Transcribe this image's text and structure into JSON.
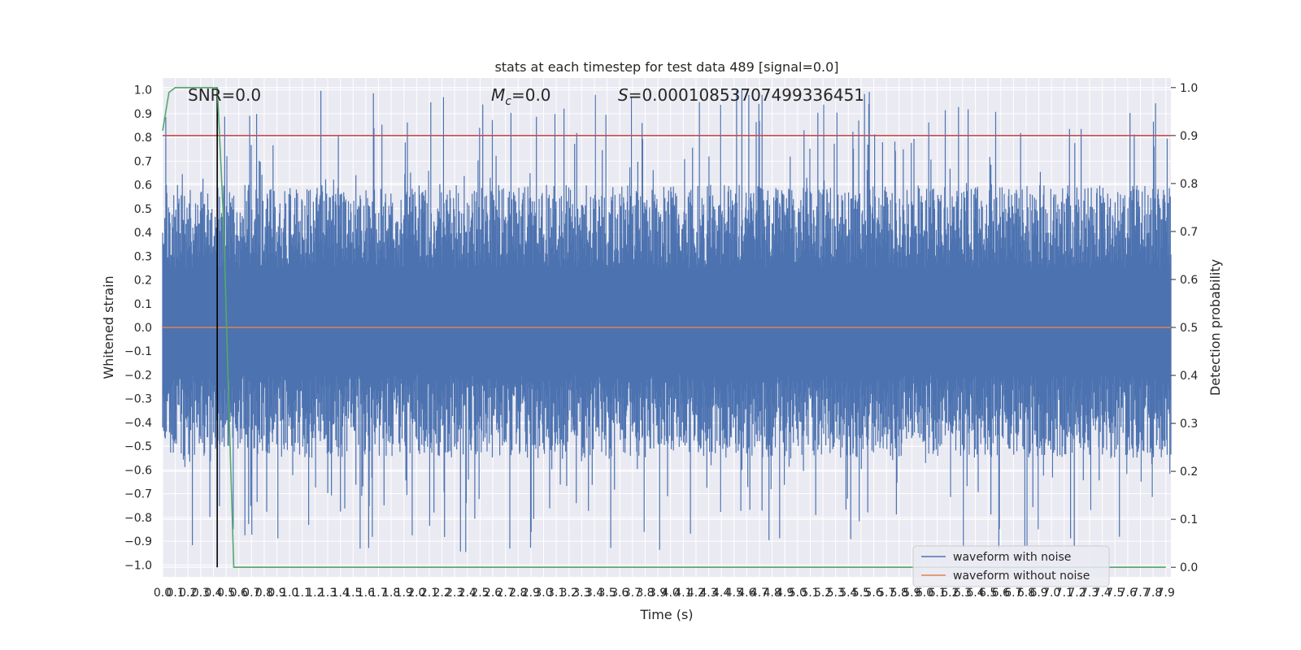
{
  "chart_data": {
    "type": "line",
    "title": "stats at each timestep for test data 489 [signal=0.0]",
    "xlabel": "Time (s)",
    "ylabel": "Whitened strain",
    "ylabel_right": "Detection probability",
    "xlim": [
      0.0,
      7.94
    ],
    "ylim": [
      -1.05,
      1.05
    ],
    "ylim_right": [
      -0.02,
      1.02
    ],
    "x_ticks": [
      "0.0",
      "0.1",
      "0.2",
      "0.3",
      "0.4",
      "0.5",
      "0.6",
      "0.7",
      "0.8",
      "0.9",
      "1.0",
      "1.1",
      "1.2",
      "1.3",
      "1.4",
      "1.5",
      "1.6",
      "1.7",
      "1.8",
      "1.9",
      "2.0",
      "2.1",
      "2.2",
      "2.3",
      "2.4",
      "2.5",
      "2.6",
      "2.7",
      "2.8",
      "2.9",
      "3.0",
      "3.1",
      "3.2",
      "3.3",
      "3.4",
      "3.5",
      "3.6",
      "3.7",
      "3.8",
      "3.9",
      "4.0",
      "4.1",
      "4.2",
      "4.3",
      "4.4",
      "4.5",
      "4.6",
      "4.7",
      "4.8",
      "4.9",
      "5.0",
      "5.1",
      "5.2",
      "5.3",
      "5.4",
      "5.5",
      "5.6",
      "5.7",
      "5.8",
      "5.9",
      "6.0",
      "6.1",
      "6.2",
      "6.3",
      "6.4",
      "6.5",
      "6.6",
      "6.7",
      "6.8",
      "6.9",
      "7.0",
      "7.1",
      "7.2",
      "7.3",
      "7.4",
      "7.5",
      "7.6",
      "7.7",
      "7.8",
      "7.9"
    ],
    "y_ticks": [
      "1.0",
      "0.9",
      "0.8",
      "0.7",
      "0.6",
      "0.5",
      "0.4",
      "0.3",
      "0.2",
      "0.1",
      "0.0",
      "-0.1",
      "-0.2",
      "-0.3",
      "-0.4",
      "-0.5",
      "-0.6",
      "-0.7",
      "-0.8",
      "-0.9",
      "-1.0"
    ],
    "y_ticks_right": [
      "1.0",
      "0.9",
      "0.8",
      "0.7",
      "0.6",
      "0.5",
      "0.4",
      "0.3",
      "0.2",
      "0.1",
      "0.0"
    ],
    "annotations": {
      "snr": "SNR=0.0",
      "mc_symbol": "M",
      "mc_sub": "c",
      "mc_value": "=0.0",
      "s_symbol": "S",
      "s_value": "=0.00010853707499336451"
    },
    "series": [
      {
        "name": "waveform with noise",
        "color": "#4c72b0",
        "axis": "left",
        "description": "dense noise, spikes approx ±0.5 typical, peaks near 1.0 and -0.95",
        "x_range": [
          0.0,
          7.94
        ],
        "envelope_typical": [
          -0.55,
          0.6
        ],
        "envelope_peak": [
          -0.95,
          1.0
        ]
      },
      {
        "name": "waveform without noise",
        "color": "#dd8452",
        "axis": "left",
        "x": [
          0.0,
          7.94
        ],
        "y": [
          0.0,
          0.0
        ]
      },
      {
        "name": "detection probability",
        "color": "#55a868",
        "axis": "right",
        "x": [
          0.0,
          0.05,
          0.1,
          0.2,
          0.3,
          0.43,
          0.48,
          0.52,
          0.56,
          7.9
        ],
        "y": [
          0.91,
          0.99,
          1.0,
          1.0,
          1.0,
          1.0,
          0.72,
          0.35,
          0.0,
          0.0
        ]
      }
    ],
    "hlines": [
      {
        "y_right": 0.9,
        "color": "#c44e52"
      }
    ],
    "vlines": [
      {
        "x": 0.43,
        "color": "#000000"
      }
    ],
    "legend": {
      "placement": "lower-right",
      "entries": [
        {
          "label": "waveform with noise",
          "color": "#4c72b0"
        },
        {
          "label": "waveform without noise",
          "color": "#dd8452"
        }
      ]
    },
    "grid": true,
    "colors": {
      "plot_bg": "#eaeaf2",
      "grid": "#ffffff"
    }
  }
}
